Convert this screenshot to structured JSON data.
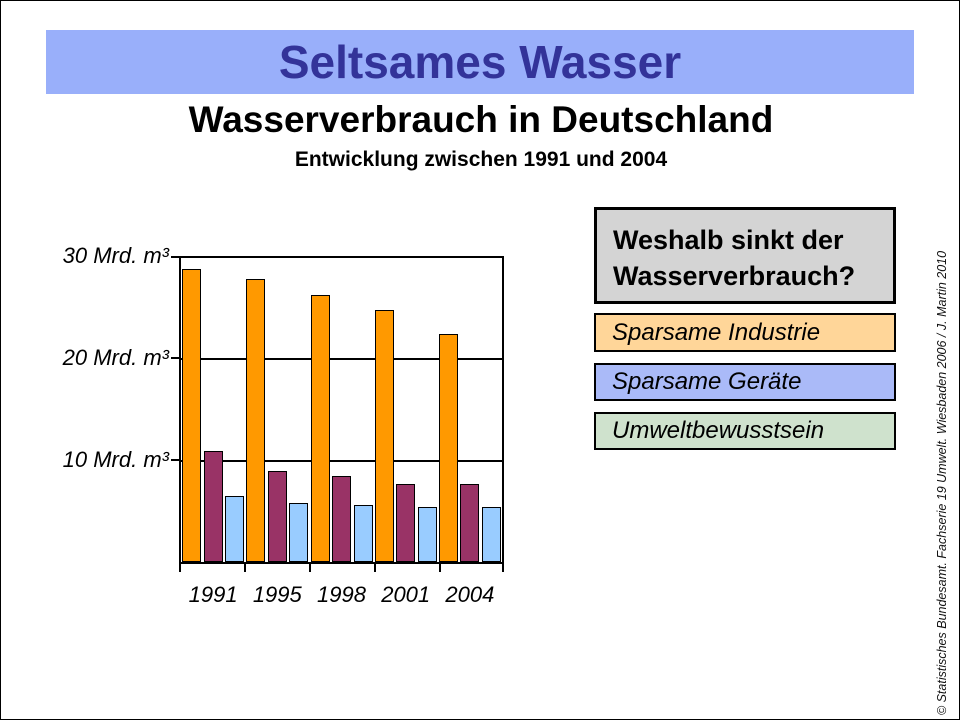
{
  "banner": {
    "title": "Seltsames Wasser",
    "bg_color": "#99AFFA",
    "text_color": "#333399"
  },
  "heading": "Wasserverbrauch in Deutschland",
  "subtitle": "Entwicklung zwischen 1991 und 2004",
  "question_box": {
    "lines": [
      "Weshalb sinkt der",
      "Wasserverbrauch?"
    ],
    "bg_color": "#D4D4D4"
  },
  "answer_boxes": [
    {
      "label": "Sparsame Industrie",
      "bg_color": "#FFD699"
    },
    {
      "label": "Sparsame Geräte",
      "bg_color": "#AABAF8"
    },
    {
      "label": "Umweltbewusstsein",
      "bg_color": "#CFE2CD"
    }
  ],
  "credit": "© Statistisches Bundesamt. Fachserie 19 Umwelt. Wiesbaden 2006 / J. Martin 2010",
  "chart_data": {
    "type": "bar",
    "categories": [
      "1991",
      "1995",
      "1998",
      "2001",
      "2004"
    ],
    "series": [
      {
        "name": "orange-series",
        "color": "#FF9900",
        "values": [
          28.9,
          27.9,
          26.4,
          24.9,
          22.5
        ]
      },
      {
        "name": "dark-red-series",
        "color": "#993366",
        "values": [
          11.0,
          9.0,
          8.5,
          7.7,
          7.7
        ]
      },
      {
        "name": "light-blue-series",
        "color": "#99CCFF",
        "values": [
          6.5,
          5.8,
          5.6,
          5.4,
          5.4
        ]
      }
    ],
    "unit": "Mrd. m³",
    "ylim": [
      0,
      30
    ],
    "ytick_interval": 10,
    "ytick_labels": [
      "30 Mrd. m³",
      "20 Mrd. m³",
      "10 Mrd. m³"
    ],
    "grid": true,
    "legend": false
  }
}
